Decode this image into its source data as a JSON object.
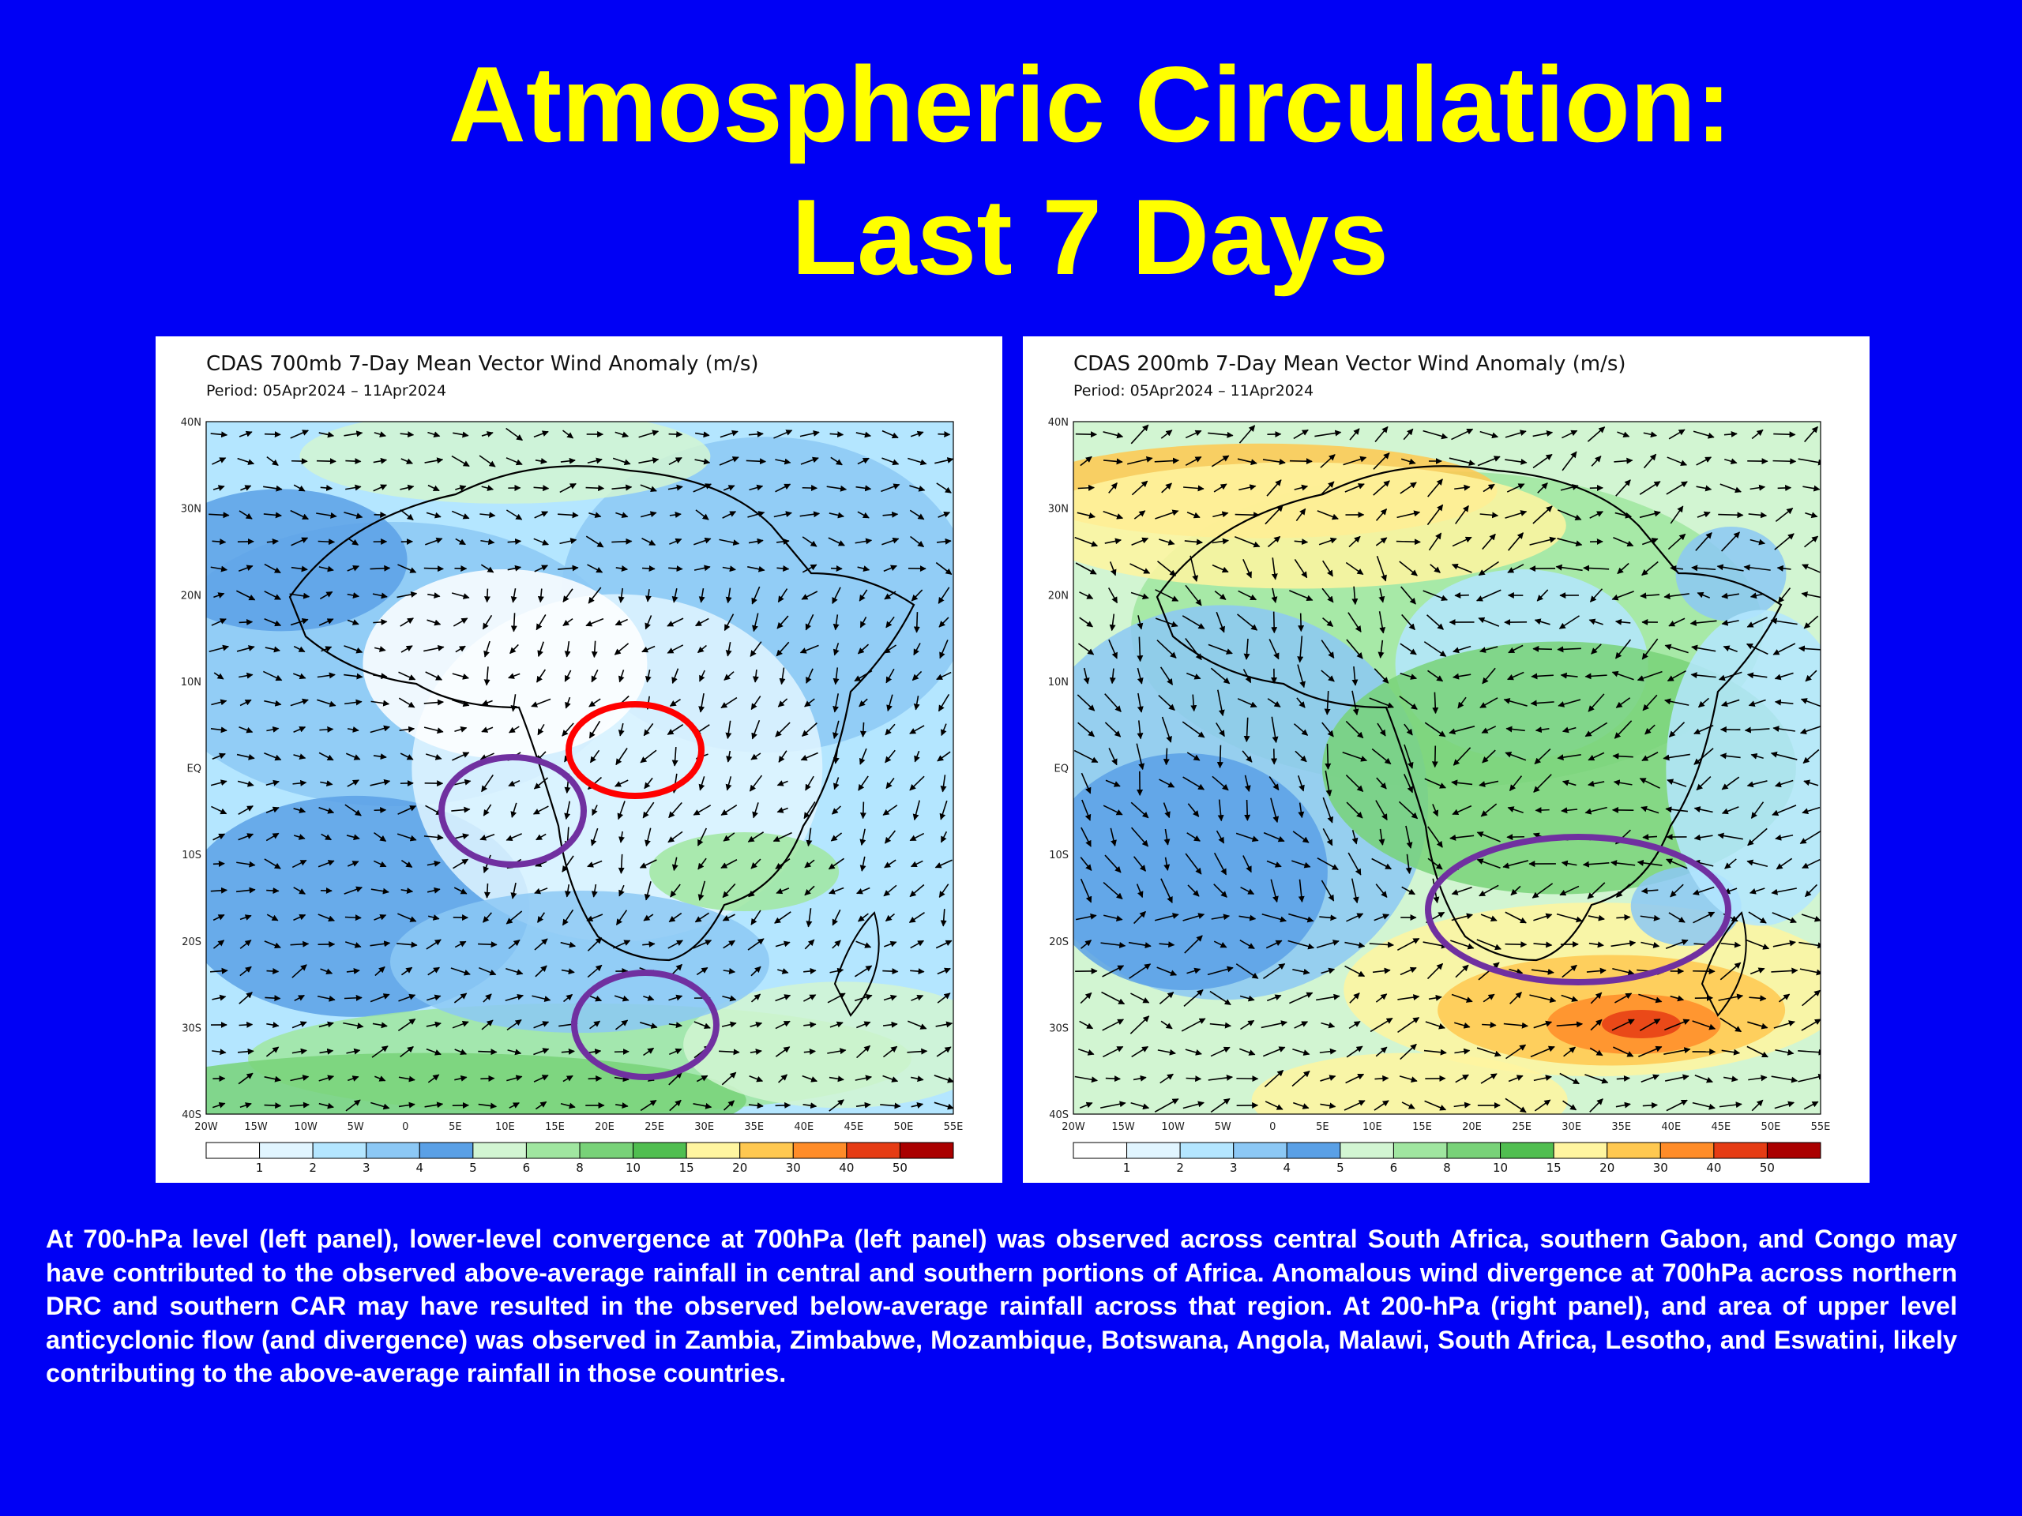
{
  "slide": {
    "title_line1": "Atmospheric Circulation:",
    "title_line2": "Last 7 Days"
  },
  "panels": [
    {
      "id": "700mb",
      "title": "CDAS 700mb 7-Day Mean Vector Wind Anomaly (m/s)",
      "period": "Period: 05Apr2024 – 11Apr2024",
      "annotations": [
        {
          "shape": "ellipse",
          "color": "#ff0000",
          "label": "Anomalous wind divergence (northern DRC / southern CAR)"
        },
        {
          "shape": "ellipse",
          "color": "#7030a0",
          "label": "Lower-level convergence (southern Gabon / Congo)"
        },
        {
          "shape": "ellipse",
          "color": "#7030a0",
          "label": "Lower-level convergence (central South Africa)"
        }
      ]
    },
    {
      "id": "200mb",
      "title": "CDAS 200mb 7-Day Mean Vector Wind Anomaly (m/s)",
      "period": "Period: 05Apr2024 – 11Apr2024",
      "annotations": [
        {
          "shape": "ellipse",
          "color": "#7030a0",
          "label": "Upper-level anticyclonic flow (southern Africa)"
        }
      ]
    }
  ],
  "map_axes": {
    "lat_labels": [
      "40N",
      "30N",
      "20N",
      "10N",
      "EQ",
      "10S",
      "20S",
      "30S",
      "40S"
    ],
    "lon_labels": [
      "20W",
      "15W",
      "10W",
      "5W",
      "0",
      "5E",
      "10E",
      "15E",
      "20E",
      "25E",
      "30E",
      "35E",
      "40E",
      "45E",
      "50E",
      "55E"
    ]
  },
  "colorbar": {
    "labels": [
      "1",
      "2",
      "3",
      "4",
      "5",
      "6",
      "8",
      "10",
      "15",
      "20",
      "30",
      "40",
      "50"
    ],
    "colors": [
      "#ffffff",
      "#e1f5ff",
      "#b4e6ff",
      "#8cc8f5",
      "#5aa0e6",
      "#d2f5d2",
      "#a0e6a0",
      "#78d278",
      "#50be50",
      "#fff5a0",
      "#ffc850",
      "#ff8c28",
      "#e63c14",
      "#aa0000"
    ]
  },
  "colors": {
    "background": "#0000f5",
    "title": "#ffff00",
    "caption": "#ffffff",
    "divergence_ring": "#ff0000",
    "convergence_ring": "#7030a0"
  },
  "caption": "At 700-hPa level (left panel), lower-level convergence at 700hPa (left panel) was observed across central South Africa, southern Gabon, and Congo may have contributed to the observed above-average rainfall in central and southern portions of Africa. Anomalous wind divergence at 700hPa across northern DRC and southern CAR may have resulted in the observed below-average rainfall across that region. At 200-hPa (right panel), and area of upper level anticyclonic flow (and divergence) was observed in Zambia, Zimbabwe, Mozambique, Botswana, Angola, Malawi, South Africa, Lesotho, and Eswatini, likely contributing to the above-average rainfall in those countries."
}
